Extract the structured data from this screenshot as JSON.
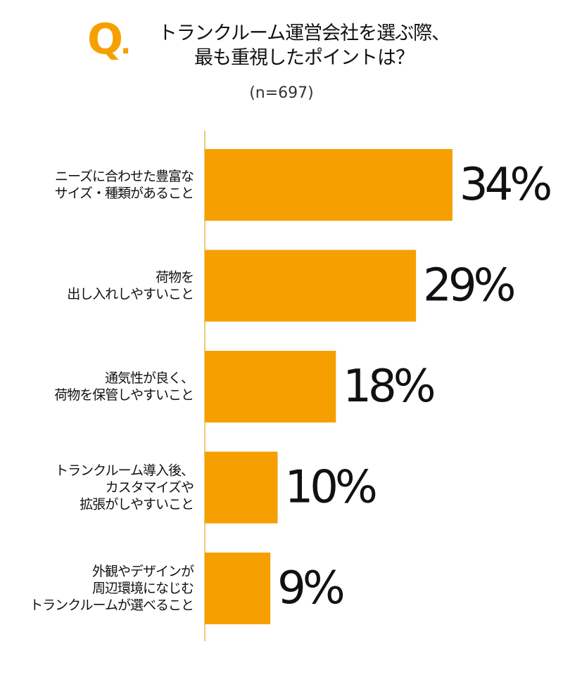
{
  "header": {
    "q_letter": "Q",
    "q_dot": ".",
    "title_line1": "トランクルーム運営会社を選ぶ際、",
    "title_line2": "最も重視したポイントは？",
    "sample": "(n=697)"
  },
  "colors": {
    "bar": "#F5A000",
    "accent": "#F5A000",
    "axis": "#E8B54A",
    "text": "#111111"
  },
  "chart_data": {
    "type": "bar",
    "orientation": "horizontal",
    "title": "トランクルーム運営会社を選ぶ際、最も重視したポイントは？",
    "subtitle": "(n=697)",
    "xlabel": "",
    "ylabel": "",
    "categories": [
      [
        "ニーズに合わせた豊富な",
        "サイズ・種類があること"
      ],
      [
        "荷物を",
        "出し入れしやすいこと"
      ],
      [
        "通気性が良く、",
        "荷物を保管しやすいこと"
      ],
      [
        "トランクルーム導入後、",
        "カスタマイズや",
        "拡張がしやすいこと"
      ],
      [
        "外観やデザインが",
        "周辺環境になじむ",
        "トランクルームが選べること"
      ]
    ],
    "values": [
      34,
      29,
      18,
      10,
      9
    ],
    "value_labels": [
      "34%",
      "29%",
      "18%",
      "10%",
      "9%"
    ],
    "unit": "%",
    "grid": false,
    "legend": "none"
  }
}
